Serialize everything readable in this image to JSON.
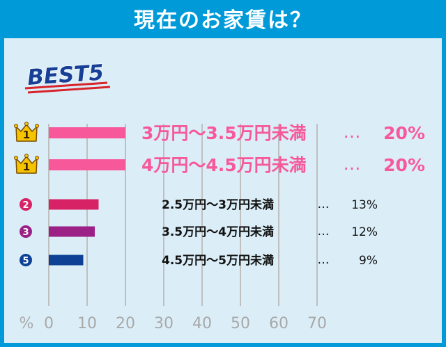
{
  "header": {
    "title": "現在のお家賃は？"
  },
  "best_label": "BEST5",
  "colors": {
    "frame": "#009ad9",
    "panel": "#dbeef8",
    "rank1": "#f7589a",
    "rank2": "#d82266",
    "rank3": "#9b2187",
    "rank5": "#0e4196",
    "crown": "#f5c400",
    "grid": "#bfbfbf",
    "axis_text": "#a8a8a8"
  },
  "chart_data": {
    "type": "bar",
    "orientation": "horizontal",
    "xlim": [
      0,
      70
    ],
    "xticks": [
      0,
      10,
      20,
      30,
      40,
      50,
      60,
      70
    ],
    "xunit_label": "%",
    "bars": [
      {
        "rank": "1",
        "badge": "crown-icon",
        "label": "3万円〜3.5万円未満",
        "dots": "…",
        "percent_text": "20%",
        "value": 20,
        "color": "#f7589a",
        "size": "large"
      },
      {
        "rank": "1",
        "badge": "crown-icon",
        "label": "4万円〜4.5万円未満",
        "dots": "…",
        "percent_text": "20%",
        "value": 20,
        "color": "#f7589a",
        "size": "large"
      },
      {
        "rank": "2",
        "badge": "circle-icon",
        "label": "2.5万円〜3万円未満",
        "dots": "…",
        "percent_text": "13%",
        "value": 13,
        "color": "#d82266",
        "size": "small"
      },
      {
        "rank": "3",
        "badge": "circle-icon",
        "label": "3.5万円〜4万円未満",
        "dots": "…",
        "percent_text": "12%",
        "value": 12,
        "color": "#9b2187",
        "size": "small"
      },
      {
        "rank": "5",
        "badge": "circle-icon",
        "label": "4.5万円〜5万円未満",
        "dots": "…",
        "percent_text": "9%",
        "value": 9,
        "color": "#0e4196",
        "size": "small"
      }
    ]
  }
}
